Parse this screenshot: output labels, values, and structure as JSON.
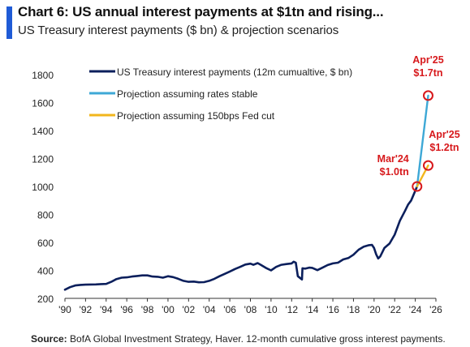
{
  "chart_data": {
    "type": "line",
    "title": "Chart 6: US annual interest payments at $1tn and rising...",
    "subtitle": "US Treasury interest payments ($ bn) & projection scenarios",
    "ylim": [
      200,
      1800
    ],
    "yticks": [
      200,
      400,
      600,
      800,
      1000,
      1200,
      1400,
      1600,
      1800
    ],
    "xlim": [
      1990,
      2026
    ],
    "xticks": [
      {
        "value": 1990,
        "label": "'90"
      },
      {
        "value": 1992,
        "label": "'92"
      },
      {
        "value": 1994,
        "label": "'94"
      },
      {
        "value": 1996,
        "label": "'96"
      },
      {
        "value": 1998,
        "label": "'98"
      },
      {
        "value": 2000,
        "label": "'00"
      },
      {
        "value": 2002,
        "label": "'02"
      },
      {
        "value": 2004,
        "label": "'04"
      },
      {
        "value": 2006,
        "label": "'06"
      },
      {
        "value": 2008,
        "label": "'08"
      },
      {
        "value": 2010,
        "label": "'10"
      },
      {
        "value": 2012,
        "label": "'12"
      },
      {
        "value": 2014,
        "label": "'14"
      },
      {
        "value": 2016,
        "label": "'16"
      },
      {
        "value": 2018,
        "label": "'18"
      },
      {
        "value": 2020,
        "label": "'20"
      },
      {
        "value": 2022,
        "label": "'22"
      },
      {
        "value": 2024,
        "label": "'24"
      },
      {
        "value": 2026,
        "label": "'26"
      }
    ],
    "legend_position": "top-left",
    "series": [
      {
        "name": "US Treasury interest payments (12m cumualtive, $ bn)",
        "color": "#0b1f5c",
        "x": [
          1990.0,
          1990.5,
          1991.0,
          1991.5,
          1992.0,
          1992.5,
          1993.0,
          1993.5,
          1994.0,
          1994.5,
          1995.0,
          1995.5,
          1996.0,
          1996.5,
          1997.0,
          1997.5,
          1998.0,
          1998.5,
          1999.0,
          1999.5,
          2000.0,
          2000.5,
          2001.0,
          2001.5,
          2002.0,
          2002.5,
          2003.0,
          2003.5,
          2004.0,
          2004.5,
          2005.0,
          2005.5,
          2006.0,
          2006.5,
          2007.0,
          2007.5,
          2008.0,
          2008.3,
          2008.7,
          2009.0,
          2009.5,
          2010.0,
          2010.5,
          2011.0,
          2011.5,
          2012.0,
          2012.2,
          2012.4,
          2012.6,
          2013.0,
          2013.05,
          2013.3,
          2013.7,
          2014.0,
          2014.5,
          2015.0,
          2015.5,
          2016.0,
          2016.5,
          2017.0,
          2017.5,
          2018.0,
          2018.5,
          2019.0,
          2019.5,
          2019.8,
          2020.0,
          2020.2,
          2020.4,
          2020.6,
          2020.8,
          2021.0,
          2021.5,
          2022.0,
          2022.5,
          2023.0,
          2023.3,
          2023.6,
          2024.0,
          2024.17
        ],
        "values": [
          262,
          280,
          292,
          296,
          298,
          299,
          300,
          302,
          303,
          318,
          338,
          348,
          350,
          356,
          360,
          364,
          364,
          356,
          354,
          348,
          358,
          352,
          340,
          325,
          318,
          320,
          315,
          316,
          325,
          340,
          358,
          375,
          392,
          410,
          425,
          442,
          448,
          440,
          452,
          440,
          418,
          400,
          425,
          440,
          445,
          450,
          462,
          455,
          358,
          335,
          415,
          412,
          420,
          418,
          402,
          420,
          438,
          450,
          455,
          478,
          488,
          512,
          548,
          570,
          580,
          582,
          560,
          515,
          485,
          500,
          530,
          560,
          592,
          655,
          755,
          825,
          870,
          900,
          970,
          1000
        ]
      },
      {
        "name": "Projection assuming rates stable",
        "color": "#3ea8d6",
        "x": [
          2024.17,
          2025.25
        ],
        "values": [
          1000,
          1650
        ]
      },
      {
        "name": "Projection assuming 150bps Fed cut",
        "color": "#f2b61c",
        "x": [
          2024.17,
          2025.25
        ],
        "values": [
          1000,
          1150
        ]
      }
    ],
    "annotations": [
      {
        "id": "mar24",
        "line1": "Mar'24",
        "line2": "$1.0tn",
        "x": 2024.17,
        "y": 1000,
        "color": "#d7191c"
      },
      {
        "id": "apr25-stable",
        "line1": "Apr'25",
        "line2": "$1.7tn",
        "x": 2025.25,
        "y": 1650,
        "color": "#d7191c"
      },
      {
        "id": "apr25-cut",
        "line1": "Apr'25",
        "line2": "$1.2tn",
        "x": 2025.25,
        "y": 1150,
        "color": "#d7191c"
      }
    ]
  },
  "source": {
    "label": "Source:",
    "text": " BofA Global Investment Strategy, Haver. 12-month cumulative gross interest payments."
  }
}
